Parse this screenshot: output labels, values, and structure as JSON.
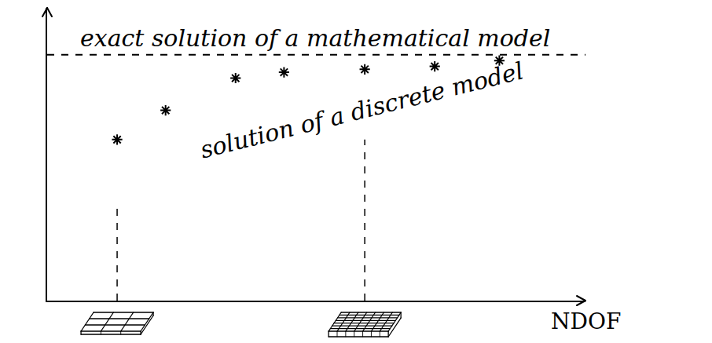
{
  "chart_data": {
    "type": "scatter",
    "xlabel": "NDOF",
    "xlim": [
      0,
      100
    ],
    "ylim": [
      0,
      100
    ],
    "tick_labels": false,
    "grid": false,
    "series": [
      {
        "name": "solution of a discrete model",
        "x": [
          13,
          22,
          35,
          44,
          59,
          72,
          84
        ],
        "values": [
          55,
          65,
          76,
          78,
          79,
          80,
          82
        ],
        "marker": "asterisk",
        "color": "#000000"
      }
    ],
    "exact_solution": {
      "name": "exact solution of a mathematical model",
      "value": 84,
      "line_style": "dashed",
      "color": "#000000"
    },
    "mesh_markers": {
      "x": [
        13,
        59
      ],
      "y": [
        32,
        55
      ],
      "line_style": "dashed"
    }
  }
}
